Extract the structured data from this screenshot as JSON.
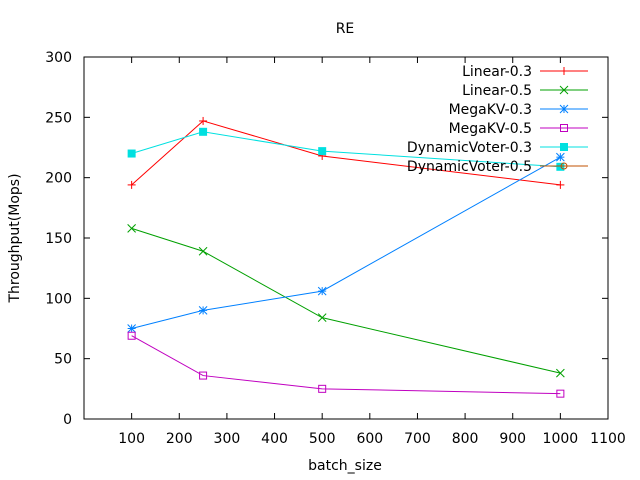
{
  "chart_data": {
    "type": "line",
    "title": "RE",
    "xlabel": "batch_size",
    "ylabel": "Throughput(Mops)",
    "xlim": [
      0,
      1100
    ],
    "ylim": [
      0,
      300
    ],
    "xticks": [
      100,
      200,
      300,
      400,
      500,
      600,
      700,
      800,
      900,
      1000,
      1100
    ],
    "yticks": [
      0,
      50,
      100,
      150,
      200,
      250,
      300
    ],
    "grid": false,
    "legend": "top-right",
    "x": [
      100,
      250,
      500,
      1000
    ],
    "series": [
      {
        "name": "Linear-0.3",
        "color": "#ff0000",
        "marker": "plus",
        "values": [
          194,
          247,
          218,
          194
        ]
      },
      {
        "name": "Linear-0.5",
        "color": "#00a000",
        "marker": "cross",
        "values": [
          158,
          139,
          84,
          38
        ]
      },
      {
        "name": "MegaKV-0.3",
        "color": "#0080ff",
        "marker": "star",
        "values": [
          75,
          90,
          106,
          217
        ]
      },
      {
        "name": "MegaKV-0.5",
        "color": "#c000c0",
        "marker": "open-square",
        "values": [
          69,
          36,
          25,
          21
        ]
      },
      {
        "name": "DynamicVoter-0.3",
        "color": "#00e0e0",
        "marker": "filled-square",
        "values": [
          220,
          238,
          222,
          209
        ]
      },
      {
        "name": "DynamicVoter-0.5",
        "color": "#c05000",
        "marker": "open-circle",
        "values": [
          null,
          null,
          null,
          null
        ]
      }
    ]
  }
}
